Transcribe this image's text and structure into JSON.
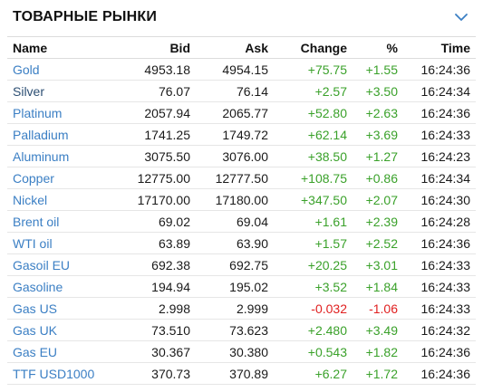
{
  "widget": {
    "title": "ТОВАРНЫЕ РЫНКИ",
    "collapse_icon": "chevron-down-icon",
    "accent_color": "#3b7fc4"
  },
  "columns": {
    "name": "Name",
    "bid": "Bid",
    "ask": "Ask",
    "change": "Change",
    "pct": "%",
    "time": "Time"
  },
  "colors": {
    "positive": "#3aa12a",
    "negative": "#e02020",
    "link": "#3b7fc4"
  },
  "rows": [
    {
      "name": "Gold",
      "bid": "4953.18",
      "ask": "4954.15",
      "change": "+75.75",
      "pct": "+1.55",
      "time": "16:24:36"
    },
    {
      "name": "Silver",
      "bid": "76.07",
      "ask": "76.14",
      "change": "+2.57",
      "pct": "+3.50",
      "time": "16:24:34"
    },
    {
      "name": "Platinum",
      "bid": "2057.94",
      "ask": "2065.77",
      "change": "+52.80",
      "pct": "+2.63",
      "time": "16:24:36"
    },
    {
      "name": "Palladium",
      "bid": "1741.25",
      "ask": "1749.72",
      "change": "+62.14",
      "pct": "+3.69",
      "time": "16:24:33"
    },
    {
      "name": "Aluminum",
      "bid": "3075.50",
      "ask": "3076.00",
      "change": "+38.50",
      "pct": "+1.27",
      "time": "16:24:23"
    },
    {
      "name": "Copper",
      "bid": "12775.00",
      "ask": "12777.50",
      "change": "+108.75",
      "pct": "+0.86",
      "time": "16:24:34"
    },
    {
      "name": "Nickel",
      "bid": "17170.00",
      "ask": "17180.00",
      "change": "+347.50",
      "pct": "+2.07",
      "time": "16:24:30"
    },
    {
      "name": "Brent oil",
      "bid": "69.02",
      "ask": "69.04",
      "change": "+1.61",
      "pct": "+2.39",
      "time": "16:24:28"
    },
    {
      "name": "WTI oil",
      "bid": "63.89",
      "ask": "63.90",
      "change": "+1.57",
      "pct": "+2.52",
      "time": "16:24:36"
    },
    {
      "name": "Gasoil EU",
      "bid": "692.38",
      "ask": "692.75",
      "change": "+20.25",
      "pct": "+3.01",
      "time": "16:24:33"
    },
    {
      "name": "Gasoline",
      "bid": "194.94",
      "ask": "195.02",
      "change": "+3.52",
      "pct": "+1.84",
      "time": "16:24:33"
    },
    {
      "name": "Gas US",
      "bid": "2.998",
      "ask": "2.999",
      "change": "-0.032",
      "pct": "-1.06",
      "time": "16:24:33"
    },
    {
      "name": "Gas UK",
      "bid": "73.510",
      "ask": "73.623",
      "change": "+2.480",
      "pct": "+3.49",
      "time": "16:24:32"
    },
    {
      "name": "Gas EU",
      "bid": "30.367",
      "ask": "30.380",
      "change": "+0.543",
      "pct": "+1.82",
      "time": "16:24:36"
    },
    {
      "name": "TTF USD1000",
      "bid": "370.73",
      "ask": "370.89",
      "change": "+6.27",
      "pct": "+1.72",
      "time": "16:24:36"
    }
  ]
}
